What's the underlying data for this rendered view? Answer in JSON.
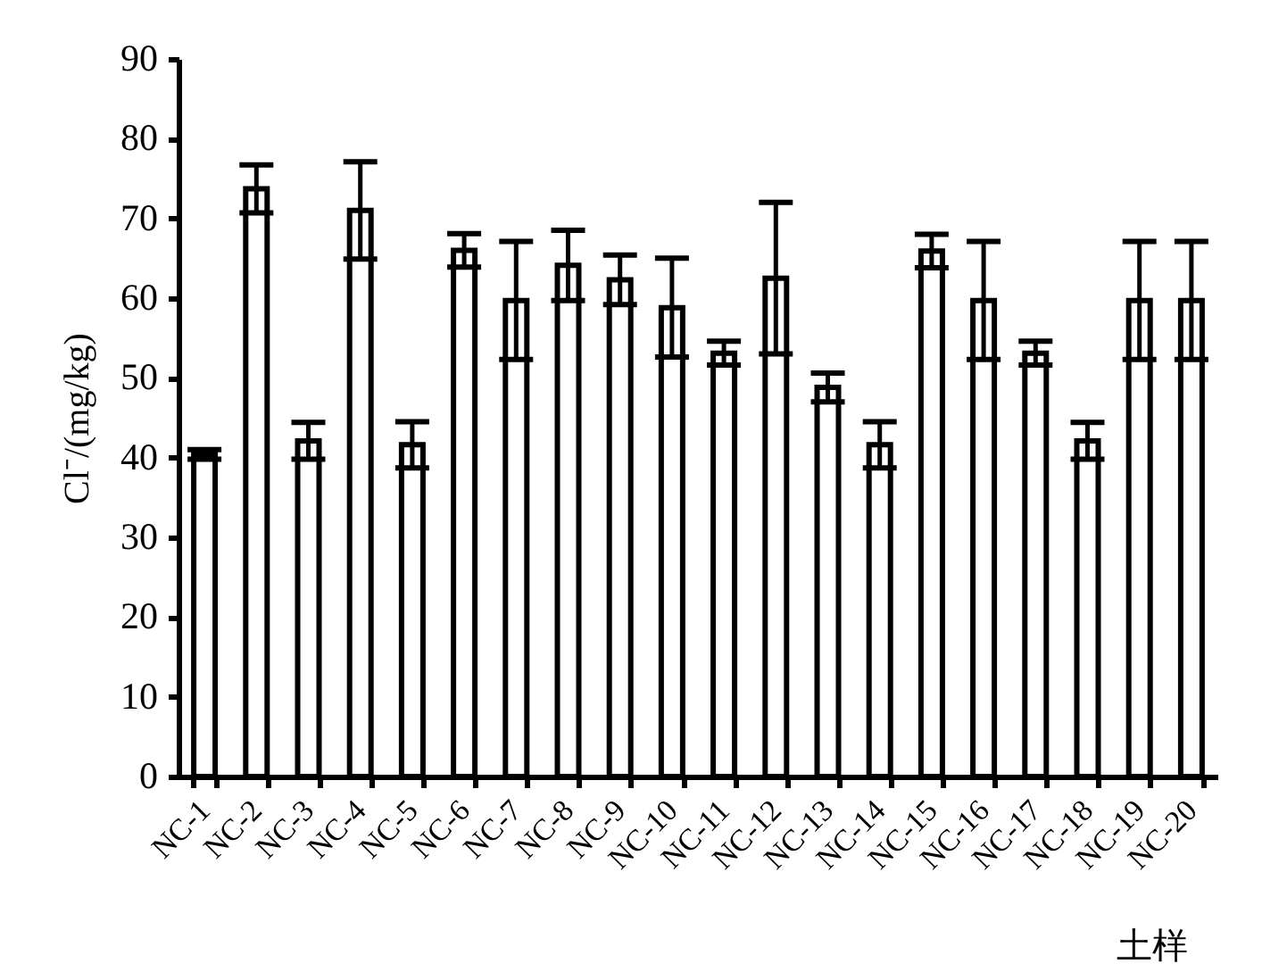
{
  "chart_data": {
    "type": "bar",
    "ylabel": "Cl⁻/(mg/kg)",
    "xlabel": "土样",
    "categories": [
      "NC-1",
      "NC-2",
      "NC-3",
      "NC-4",
      "NC-5",
      "NC-6",
      "NC-7",
      "NC-8",
      "NC-9",
      "NC-10",
      "NC-11",
      "NC-12",
      "NC-13",
      "NC-14",
      "NC-15",
      "NC-16",
      "NC-17",
      "NC-18",
      "NC-19",
      "NC-20"
    ],
    "values": [
      40.4,
      73.7,
      42.1,
      71.0,
      41.6,
      66.0,
      59.7,
      64.1,
      62.3,
      58.8,
      53.1,
      62.5,
      48.8,
      41.6,
      65.9,
      59.7,
      53.1,
      42.1,
      59.7,
      59.7
    ],
    "errors": [
      0.6,
      3.0,
      2.3,
      6.1,
      2.9,
      2.1,
      7.4,
      4.4,
      3.1,
      6.2,
      1.5,
      9.5,
      1.8,
      2.9,
      2.1,
      7.4,
      1.5,
      2.3,
      7.4,
      7.4
    ],
    "color": "#ffffff",
    "ylim": [
      0,
      90
    ],
    "yticks": [
      0,
      10,
      20,
      30,
      40,
      50,
      60,
      70,
      80,
      90
    ]
  }
}
